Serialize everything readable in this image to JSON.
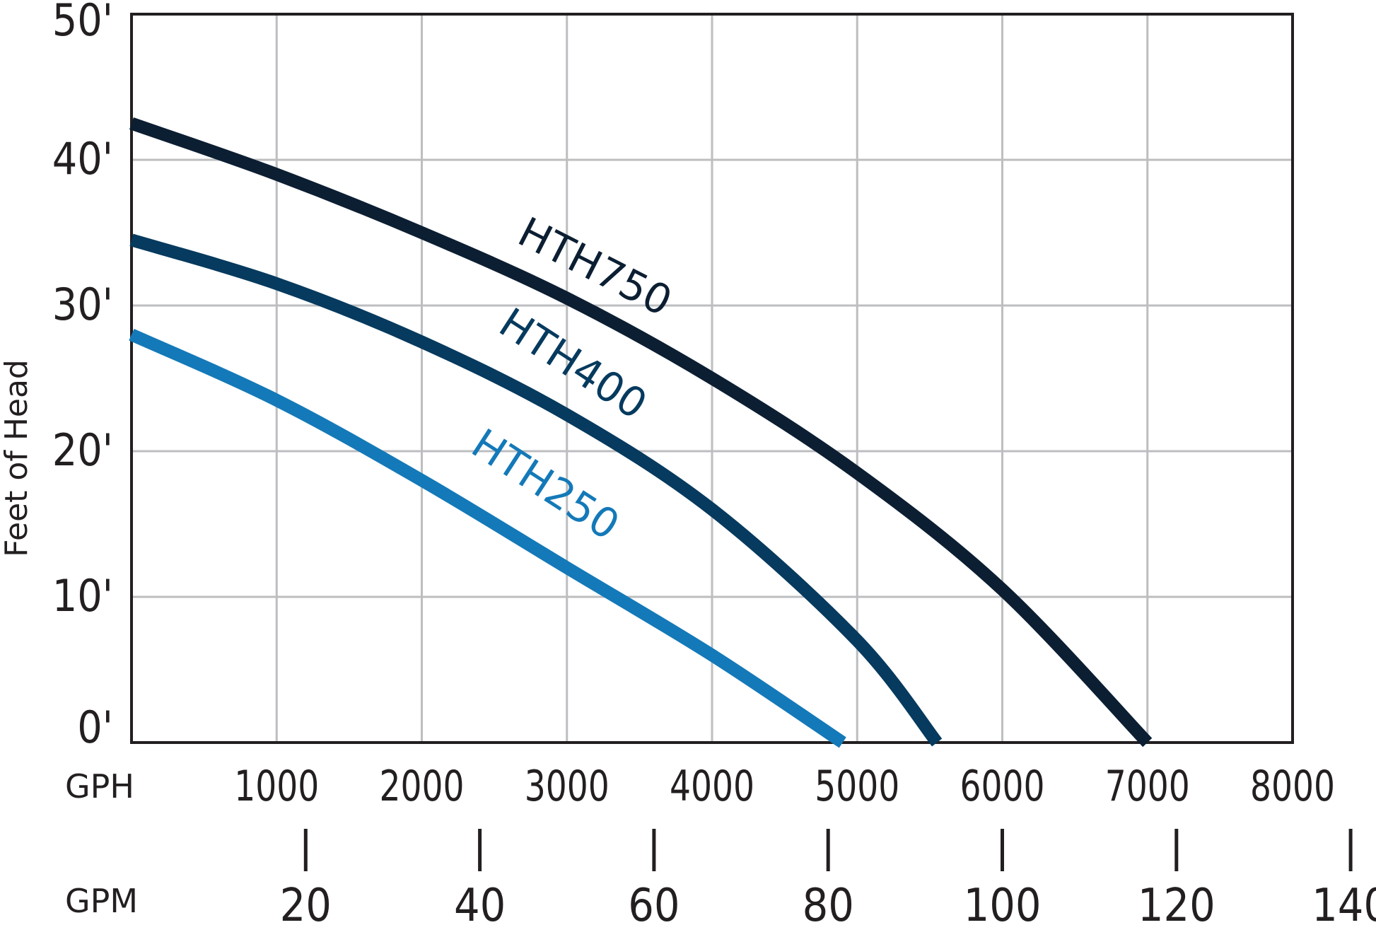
{
  "chart_data": {
    "type": "line",
    "ylabel": "Feet of Head",
    "x_axis_primary": {
      "label": "GPH",
      "ticks": [
        "1000",
        "2000",
        "3000",
        "4000",
        "5000",
        "6000",
        "7000",
        "8000"
      ],
      "xlim": [
        0,
        8000
      ]
    },
    "x_axis_secondary": {
      "label": "GPM",
      "ticks": [
        "20",
        "40",
        "60",
        "80",
        "100",
        "120",
        "140"
      ],
      "tick_values": [
        20,
        40,
        60,
        80,
        100,
        120,
        140
      ]
    },
    "y_ticks": [
      "0'",
      "10'",
      "20'",
      "30'",
      "40'",
      "50'"
    ],
    "ylim": [
      0,
      50
    ],
    "grid": true,
    "legend": "inline-labels",
    "series": [
      {
        "name": "HTH750",
        "color": "#0c1e32",
        "x": [
          0,
          1000,
          2000,
          3000,
          4000,
          5000,
          6000,
          7000
        ],
        "y": [
          42.5,
          39,
          35,
          30.5,
          25,
          18.5,
          10.5,
          0
        ]
      },
      {
        "name": "HTH400",
        "color": "#063a5e",
        "x": [
          0,
          1000,
          2000,
          3000,
          4000,
          5000,
          5550
        ],
        "y": [
          34.5,
          31.5,
          27.5,
          22.5,
          16,
          7,
          0
        ]
      },
      {
        "name": "HTH250",
        "color": "#1479b8",
        "x": [
          0,
          1000,
          2000,
          3000,
          4000,
          4900
        ],
        "y": [
          28,
          23.5,
          18,
          12,
          6,
          0
        ]
      }
    ]
  }
}
